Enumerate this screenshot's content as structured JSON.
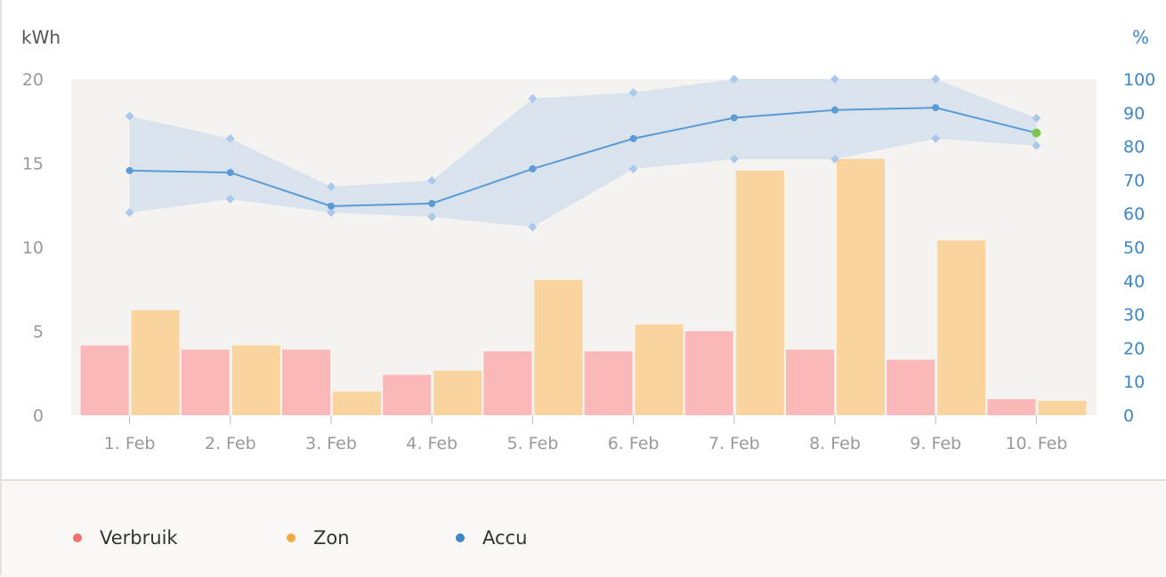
{
  "chart_data": {
    "type": "bar",
    "categories": [
      "1. Feb",
      "2. Feb",
      "3. Feb",
      "4. Feb",
      "5. Feb",
      "6. Feb",
      "7. Feb",
      "8. Feb",
      "9. Feb",
      "10. Feb"
    ],
    "y_left": {
      "label": "kWh",
      "range": [
        0,
        20
      ],
      "ticks": [
        "0",
        "5",
        "10",
        "15",
        "20"
      ]
    },
    "y_right": {
      "label": "%",
      "range": [
        0,
        100
      ],
      "ticks": [
        "0",
        "10",
        "20",
        "30",
        "40",
        "50",
        "60",
        "70",
        "80",
        "90",
        "100"
      ]
    },
    "series": [
      {
        "name": "Verbruik",
        "type": "bar",
        "axis": "left",
        "color": "#fbb8b8",
        "legend_color": "#f07070",
        "values": [
          4.15,
          3.9,
          3.9,
          2.4,
          3.8,
          3.8,
          5.0,
          3.9,
          3.3,
          0.95
        ]
      },
      {
        "name": "Zon",
        "type": "bar",
        "axis": "left",
        "color": "#f9d49e",
        "legend_color": "#f2a945",
        "values": [
          6.25,
          4.15,
          1.4,
          2.65,
          8.05,
          5.4,
          14.55,
          15.25,
          10.4,
          0.85
        ]
      },
      {
        "name": "Accu",
        "type": "line",
        "axis": "right",
        "color": "#5b9bd5",
        "legend_color": "#3d85c6",
        "values": [
          72.8,
          72.2,
          62.2,
          63.0,
          73.3,
          82.3,
          88.5,
          90.8,
          91.5,
          84.0
        ],
        "max": [
          89,
          82.3,
          68,
          69.8,
          94.2,
          96,
          100,
          100,
          100,
          88.4
        ],
        "min": [
          60.3,
          64.3,
          60.3,
          59,
          56,
          73.3,
          76.2,
          76.2,
          82.3,
          80.2
        ],
        "last_point_color": "#7cc552"
      }
    ],
    "legend": {
      "position": "bottom-left",
      "items": [
        "Verbruik",
        "Zon",
        "Accu"
      ]
    },
    "grid": false
  }
}
